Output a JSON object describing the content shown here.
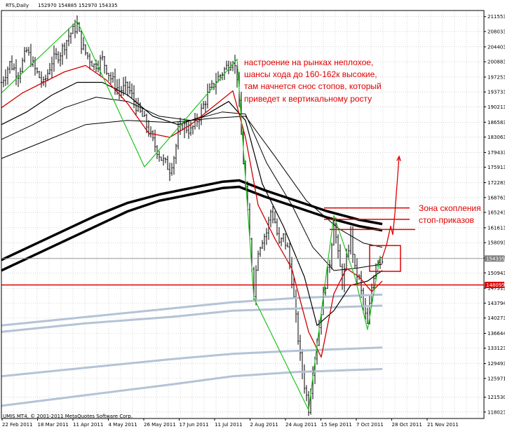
{
  "header": {
    "symbol": "RTS,Daily",
    "ohlc": "152970 154885 152970 154335"
  },
  "footer": {
    "copyright": "UMIS MT4, © 2001-2011 MetaQuotes Software Corp."
  },
  "price_badges": [
    {
      "value": 154335,
      "label": "154335",
      "color": "#808080"
    },
    {
      "value": 148095,
      "label": "148095",
      "color": "#e00000"
    }
  ],
  "annotations": {
    "main": [
      "настроение на рынках неплохое,",
      "шансы хода до 160-162к высокие,",
      "там начнется снос стопов, который",
      "приведет к вертикальному росту"
    ],
    "zone": [
      "Зона скопления",
      "стоп-приказов"
    ]
  },
  "chart_data": {
    "type": "line",
    "y_ticks": [
      118023,
      121530,
      125971,
      129493,
      133123,
      136644,
      140273,
      143794,
      147313,
      150943,
      154463,
      158093,
      161613,
      165243,
      168763,
      172283,
      175913,
      179433,
      183063,
      186583,
      190213,
      193733,
      197253,
      200883,
      204403,
      208033,
      211553
    ],
    "y_tick_labels": [
      "118023",
      "121530",
      "125971",
      "129493",
      "133123",
      "136644",
      "140273",
      "143794",
      "147313",
      "150943",
      "154463",
      "158093",
      "161613",
      "165243",
      "168763",
      "172283",
      "175913",
      "179433",
      "183063",
      "186583",
      "190213",
      "193733",
      "197253",
      "200883",
      "204403",
      "208033",
      "211553"
    ],
    "ylim": [
      116500,
      213000
    ],
    "x_labels": [
      "22 Feb 2011",
      "18 Mar 2011",
      "11 Apr 2011",
      "4 May 2011",
      "26 May 2011",
      "17 Jun 2011",
      "11 Jul 2011",
      "2 Aug 2011",
      "24 Aug 2011",
      "15 Sep 2011",
      "7 Oct 2011",
      "28 Oct 2011",
      "21 Nov 2011"
    ],
    "current_price": 154335,
    "red_level": 148095,
    "price_path": [
      [
        0,
        196000
      ],
      [
        4,
        200500
      ],
      [
        8,
        198000
      ],
      [
        12,
        203500
      ],
      [
        16,
        199000
      ],
      [
        20,
        195500
      ],
      [
        24,
        201000
      ],
      [
        28,
        203000
      ],
      [
        32,
        207000
      ],
      [
        36,
        209500
      ],
      [
        38,
        205000
      ],
      [
        40,
        203000
      ],
      [
        44,
        200000
      ],
      [
        48,
        201500
      ],
      [
        52,
        197000
      ],
      [
        56,
        194000
      ],
      [
        60,
        195000
      ],
      [
        64,
        190500
      ],
      [
        68,
        187000
      ],
      [
        72,
        182000
      ],
      [
        76,
        178000
      ],
      [
        80,
        175500
      ],
      [
        82,
        178500
      ],
      [
        84,
        183500
      ],
      [
        86,
        186000
      ],
      [
        90,
        184500
      ],
      [
        94,
        188000
      ],
      [
        98,
        193000
      ],
      [
        102,
        196500
      ],
      [
        106,
        199000
      ],
      [
        110,
        201500
      ],
      [
        112,
        197500
      ],
      [
        114,
        183500
      ],
      [
        116,
        171000
      ],
      [
        118,
        158500
      ],
      [
        120,
        146500
      ],
      [
        122,
        156500
      ],
      [
        124,
        159000
      ],
      [
        126,
        160500
      ],
      [
        128,
        165500
      ],
      [
        130,
        163000
      ],
      [
        132,
        157500
      ],
      [
        134,
        159500
      ],
      [
        136,
        156500
      ],
      [
        138,
        149500
      ],
      [
        140,
        140000
      ],
      [
        142,
        131000
      ],
      [
        144,
        124500
      ],
      [
        146,
        119000
      ],
      [
        148,
        128000
      ],
      [
        150,
        134500
      ],
      [
        152,
        142000
      ],
      [
        154,
        148500
      ],
      [
        156,
        153500
      ],
      [
        158,
        163500
      ],
      [
        160,
        155000
      ],
      [
        162,
        149000
      ],
      [
        164,
        153500
      ],
      [
        166,
        160500
      ],
      [
        168,
        151500
      ],
      [
        170,
        149500
      ],
      [
        172,
        143000
      ],
      [
        174,
        138500
      ],
      [
        176,
        147500
      ],
      [
        178,
        153500
      ],
      [
        180,
        155000
      ],
      [
        181,
        154335
      ]
    ],
    "zigzag": [
      [
        0,
        193500
      ],
      [
        36,
        210500
      ],
      [
        68,
        176000
      ],
      [
        112,
        201500
      ],
      [
        120,
        145000
      ],
      [
        146,
        118500
      ],
      [
        158,
        164500
      ],
      [
        168,
        150000
      ],
      [
        174,
        137500
      ],
      [
        180,
        155000
      ]
    ],
    "ma_red": [
      [
        0,
        190000
      ],
      [
        10,
        193500
      ],
      [
        20,
        196000
      ],
      [
        30,
        198500
      ],
      [
        40,
        200000
      ],
      [
        50,
        196500
      ],
      [
        60,
        191000
      ],
      [
        70,
        184000
      ],
      [
        80,
        183000
      ],
      [
        90,
        186000
      ],
      [
        100,
        190000
      ],
      [
        110,
        194000
      ],
      [
        116,
        183000
      ],
      [
        122,
        167000
      ],
      [
        130,
        159000
      ],
      [
        138,
        152000
      ],
      [
        146,
        137000
      ],
      [
        152,
        131000
      ],
      [
        158,
        146000
      ],
      [
        164,
        152000
      ],
      [
        170,
        150000
      ],
      [
        176,
        146500
      ],
      [
        181,
        149000
      ]
    ],
    "ma_black_fast": [
      [
        0,
        186000
      ],
      [
        12,
        189000
      ],
      [
        24,
        193000
      ],
      [
        36,
        196000
      ],
      [
        48,
        196000
      ],
      [
        60,
        193000
      ],
      [
        72,
        188000
      ],
      [
        84,
        186000
      ],
      [
        96,
        188000
      ],
      [
        108,
        191500
      ],
      [
        116,
        187000
      ],
      [
        124,
        172000
      ],
      [
        134,
        162000
      ],
      [
        144,
        150000
      ],
      [
        150,
        138500
      ],
      [
        158,
        142000
      ],
      [
        166,
        148000
      ],
      [
        174,
        149000
      ],
      [
        181,
        151500
      ]
    ],
    "ma_black_mid": [
      [
        0,
        182500
      ],
      [
        15,
        186000
      ],
      [
        30,
        190000
      ],
      [
        45,
        192500
      ],
      [
        60,
        191500
      ],
      [
        75,
        188000
      ],
      [
        90,
        187000
      ],
      [
        105,
        189000
      ],
      [
        116,
        188500
      ],
      [
        126,
        177000
      ],
      [
        138,
        167000
      ],
      [
        148,
        157000
      ],
      [
        158,
        151500
      ],
      [
        168,
        152000
      ],
      [
        181,
        153000
      ]
    ],
    "ma_black_slow": [
      [
        0,
        178000
      ],
      [
        20,
        182000
      ],
      [
        40,
        186000
      ],
      [
        60,
        187000
      ],
      [
        80,
        186500
      ],
      [
        100,
        187500
      ],
      [
        116,
        188000
      ],
      [
        130,
        178500
      ],
      [
        145,
        168000
      ],
      [
        160,
        161500
      ],
      [
        172,
        158000
      ],
      [
        181,
        157000
      ]
    ],
    "ma_black_thick_1": [
      [
        0,
        154000
      ],
      [
        15,
        157500
      ],
      [
        30,
        161000
      ],
      [
        45,
        164500
      ],
      [
        60,
        167500
      ],
      [
        75,
        169500
      ],
      [
        90,
        171000
      ],
      [
        105,
        172500
      ],
      [
        113,
        172800
      ],
      [
        125,
        170500
      ],
      [
        140,
        168000
      ],
      [
        155,
        165500
      ],
      [
        170,
        163500
      ],
      [
        181,
        162500
      ]
    ],
    "ma_black_thick_2": [
      [
        0,
        151500
      ],
      [
        15,
        155000
      ],
      [
        30,
        158500
      ],
      [
        45,
        162000
      ],
      [
        60,
        165500
      ],
      [
        75,
        168000
      ],
      [
        90,
        169500
      ],
      [
        105,
        171000
      ],
      [
        113,
        171300
      ],
      [
        125,
        169000
      ],
      [
        140,
        166500
      ],
      [
        155,
        164000
      ],
      [
        170,
        162000
      ],
      [
        181,
        161000
      ]
    ],
    "ma_blue_1": [
      [
        0,
        138500
      ],
      [
        40,
        140500
      ],
      [
        80,
        142500
      ],
      [
        110,
        144000
      ],
      [
        140,
        145000
      ],
      [
        181,
        145800
      ]
    ],
    "ma_blue_2": [
      [
        0,
        137000
      ],
      [
        40,
        139000
      ],
      [
        80,
        140500
      ],
      [
        110,
        142000
      ],
      [
        140,
        142500
      ],
      [
        181,
        143200
      ]
    ],
    "ma_blue_3": [
      [
        0,
        126500
      ],
      [
        40,
        128500
      ],
      [
        80,
        130500
      ],
      [
        110,
        131800
      ],
      [
        140,
        132500
      ],
      [
        181,
        133300
      ]
    ],
    "ma_blue_4": [
      [
        0,
        119500
      ],
      [
        40,
        122000
      ],
      [
        80,
        124500
      ],
      [
        110,
        126500
      ],
      [
        140,
        127500
      ],
      [
        181,
        128200
      ]
    ],
    "projection": [
      [
        181,
        154500
      ],
      [
        183,
        157500
      ],
      [
        185,
        162000
      ],
      [
        186,
        160000
      ],
      [
        187,
        165000
      ],
      [
        189,
        178500
      ]
    ]
  }
}
